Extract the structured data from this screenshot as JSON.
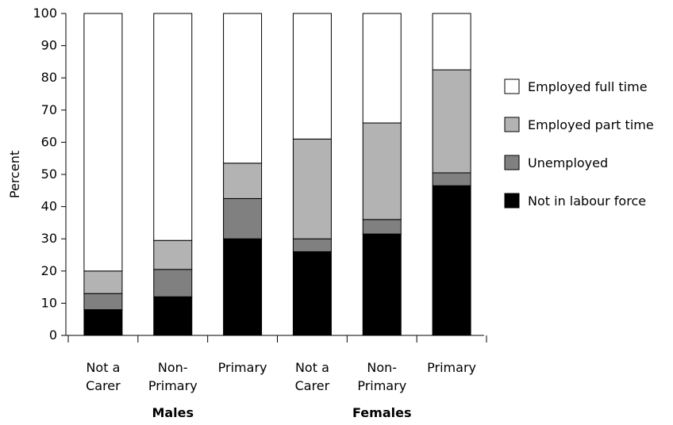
{
  "chart_data": {
    "type": "bar",
    "stacked": true,
    "ylabel": "Percent",
    "ylim": [
      0,
      100
    ],
    "yticks": [
      0,
      10,
      20,
      30,
      40,
      50,
      60,
      70,
      80,
      90,
      100
    ],
    "grid": false,
    "legend_position": "right",
    "categories": [
      {
        "lines": [
          "Not a",
          "Carer"
        ],
        "group": "Males"
      },
      {
        "lines": [
          "Non-",
          "Primary"
        ],
        "group": "Males"
      },
      {
        "lines": [
          "Primary"
        ],
        "group": "Males"
      },
      {
        "lines": [
          "Not a",
          "Carer"
        ],
        "group": "Females"
      },
      {
        "lines": [
          "Non-",
          "Primary"
        ],
        "group": "Females"
      },
      {
        "lines": [
          "Primary"
        ],
        "group": "Females"
      }
    ],
    "groups": [
      "Males",
      "Females"
    ],
    "series": [
      {
        "name": "Not in labour force",
        "color": "#000000",
        "values": [
          8,
          12,
          30,
          26,
          31.5,
          46.5
        ]
      },
      {
        "name": "Unemployed",
        "color": "#808080",
        "values": [
          5,
          8.5,
          12.5,
          4,
          4.5,
          4
        ]
      },
      {
        "name": "Employed part time",
        "color": "#b3b3b3",
        "values": [
          7,
          9,
          11,
          31,
          30,
          32
        ]
      },
      {
        "name": "Employed full time",
        "color": "#ffffff",
        "values": [
          80,
          70.5,
          46.5,
          39,
          34,
          17.5
        ]
      }
    ],
    "legend_order": [
      "Employed full time",
      "Employed part time",
      "Unemployed",
      "Not in labour force"
    ]
  }
}
